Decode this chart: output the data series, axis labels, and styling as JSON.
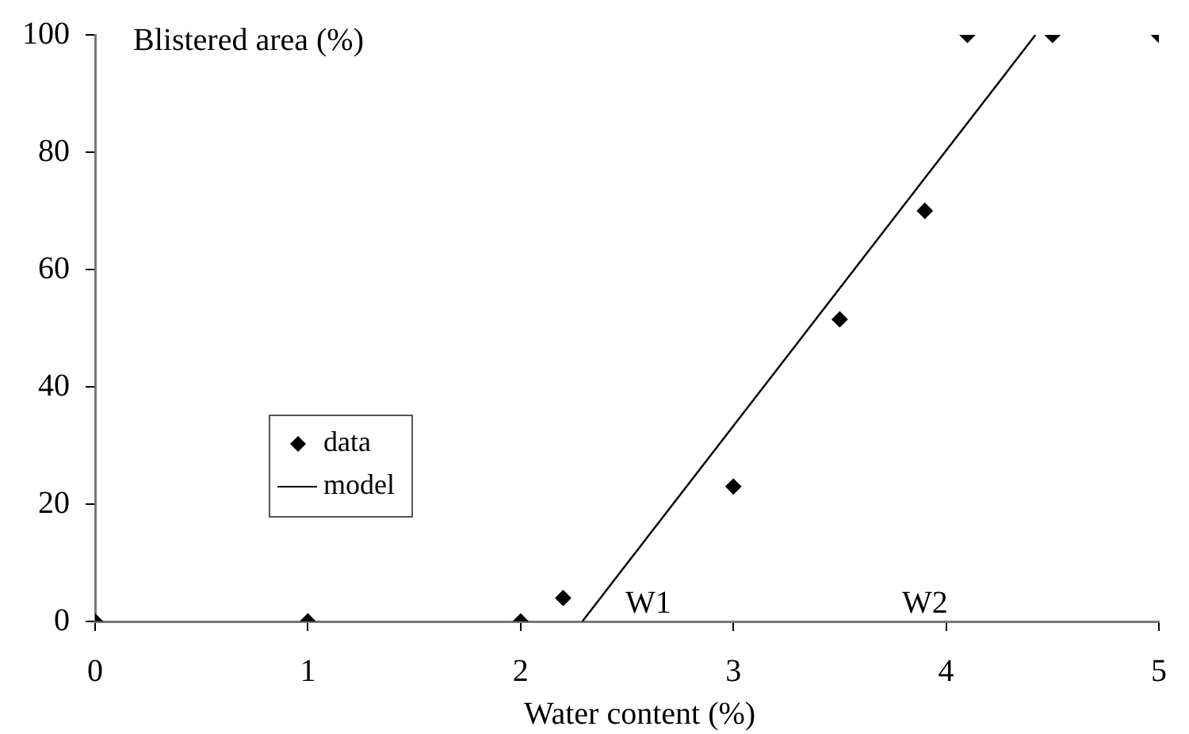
{
  "chart_data": {
    "type": "scatter",
    "xlabel": "Water content (%)",
    "ylabel": "Blistered area (%)",
    "xlim": [
      0,
      5
    ],
    "xticks": [
      0,
      1,
      2,
      3,
      4,
      5
    ],
    "ylim": [
      0,
      100
    ],
    "yticks": [
      0,
      20,
      40,
      60,
      80,
      100
    ],
    "legend": "bottom left",
    "series": [
      {
        "name": "data",
        "marker": "diamond",
        "color": "#000000",
        "x": [
          0,
          1,
          2,
          2.2,
          3,
          3.5,
          3.9,
          4.1,
          4.5,
          5
        ],
        "values": [
          0,
          0,
          0,
          4,
          23,
          51.5,
          70,
          100,
          100,
          100
        ]
      },
      {
        "name": "model",
        "type": "line",
        "color": "#000000",
        "x": [
          2.29,
          4.42
        ],
        "values": [
          0,
          100
        ]
      }
    ],
    "annotations": [
      "W1",
      "W2"
    ]
  }
}
